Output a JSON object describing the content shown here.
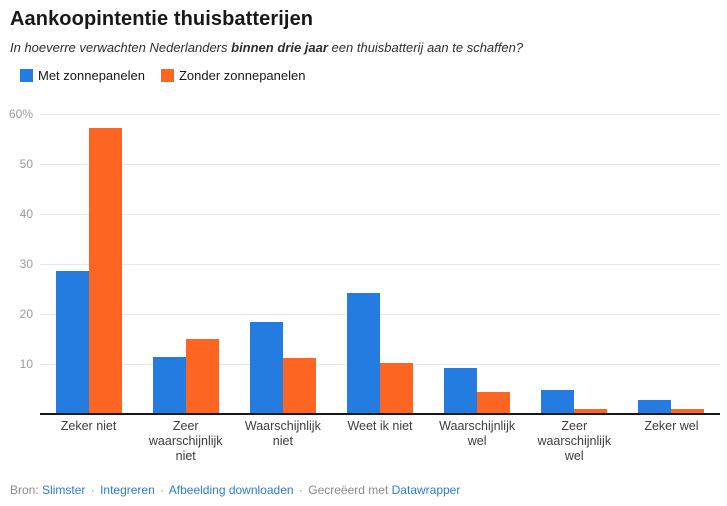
{
  "title": "Aankoopintentie thuisbatterijen",
  "subtitle": {
    "part1": "In hoeverre verwachten Nederlanders ",
    "bold": "binnen drie jaar",
    "part2": " een thuisbatterij aan te schaffen?"
  },
  "colors": {
    "blue": "#247ce0",
    "orange": "#fd6622",
    "link": "#2b7bdd",
    "grid": "#e8e8e8",
    "axis": "#18181a"
  },
  "legend": [
    {
      "label": "Met zonnepanelen",
      "color": "#247ce0"
    },
    {
      "label": "Zonder zonnepanelen",
      "color": "#fd6622"
    }
  ],
  "chart_data": {
    "type": "bar",
    "title": "Aankoopintentie thuisbatterijen",
    "subtitle": "In hoeverre verwachten Nederlanders binnen drie jaar een thuisbatterij aan te schaffen?",
    "categories": [
      "Zeker niet",
      "Zeer waarschijnlijk niet",
      "Waarschijnlijk niet",
      "Weet ik niet",
      "Waarschijnlijk wel",
      "Zeer waarschijnlijk wel",
      "Zeker wel"
    ],
    "series": [
      {
        "name": "Met zonnepanelen",
        "color": "#247ce0",
        "values": [
          28.7,
          11.5,
          18.5,
          24.3,
          9.2,
          4.8,
          2.9
        ]
      },
      {
        "name": "Zonder zonnepanelen",
        "color": "#fd6622",
        "values": [
          57.2,
          15.0,
          11.3,
          10.2,
          4.4,
          1.0,
          1.0
        ]
      }
    ],
    "ylabel": "",
    "xlabel": "",
    "ylim": [
      0,
      60
    ],
    "yticks": [
      {
        "value": 60,
        "label": "60%"
      },
      {
        "value": 50,
        "label": "50"
      },
      {
        "value": 40,
        "label": "40"
      },
      {
        "value": 30,
        "label": "30"
      },
      {
        "value": 20,
        "label": "20"
      },
      {
        "value": 10,
        "label": "10"
      }
    ],
    "grid": true,
    "legend_position": "top"
  },
  "footer": {
    "source_label": "Bron:",
    "link_slimster": "Slimster",
    "link_integreren": "Integreren",
    "link_download": "Afbeelding downloaden",
    "sep": "·",
    "created_prefix": "Gecreëerd met",
    "link_datawrapper": "Datawrapper"
  }
}
